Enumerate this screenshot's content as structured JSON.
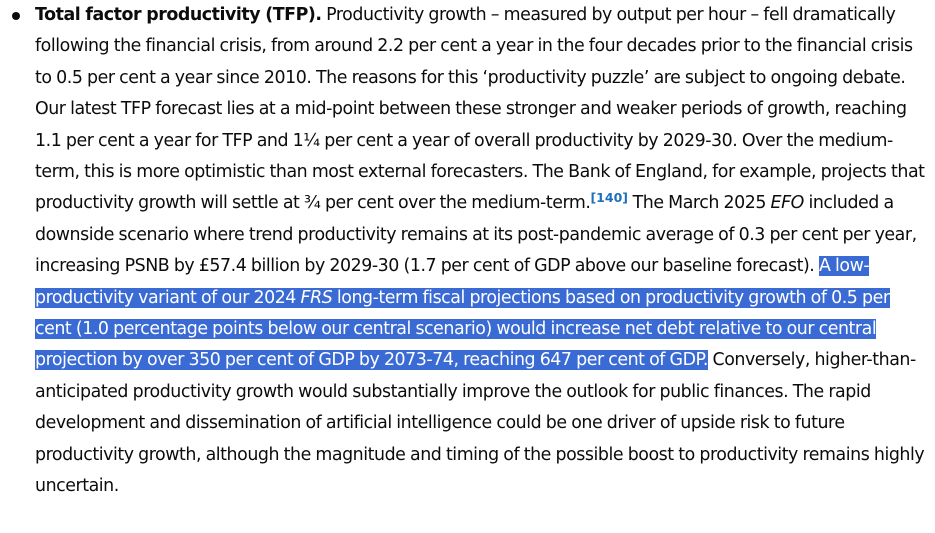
{
  "paragraph": {
    "lead": "Total factor productivity (TFP).",
    "text_1": " Productivity growth – measured by output per hour – fell dramatically following the financial crisis, from around 2.2 per cent a year in the four decades prior to the financial crisis to 0.5 per cent a year since 2010. The reasons for this ‘productivity puzzle’ are subject to ongoing debate. Our latest TFP forecast lies at a mid-point between these stronger and weaker periods of growth, reaching 1.1 per cent a year for TFP and 1¼ per cent a year of overall productivity by 2029-30. Over the medium-term, this is more optimistic than most external forecasters. The Bank of England, for example, projects that productivity growth will settle at ¾ per cent over the medium-term.",
    "footnote_ref": "[140]",
    "text_2": " The March 2025 ",
    "efo": "EFO",
    "text_3": " included a downside scenario where trend productivity remains at its post-pandemic average of 0.3 per cent per year, increasing PSNB by £57.4 billion by 2029-30 (1.7 per cent of GDP above our baseline forecast). ",
    "highlight_1": "A low-productivity variant of our 2024 ",
    "frs": "FRS",
    "highlight_2": " long-term fiscal projections based on productivity growth of 0.5 per cent (1.0 percentage points below our central scenario) would increase net debt relative to our central projection by over 350 per cent of GDP by 2073-74, reaching 647 per cent of GDP.",
    "text_4": " Conversely, higher-than-anticipated productivity growth would substantially improve the outlook for public finances. The rapid development and dissemination of artificial intelligence could be one driver of upside risk to future productivity growth, although the magnitude and timing of the possible boost to productivity remains highly uncertain."
  },
  "colors": {
    "text": "#0b0c0c",
    "link": "#1d70b8",
    "selection": "#3a6ad4"
  }
}
